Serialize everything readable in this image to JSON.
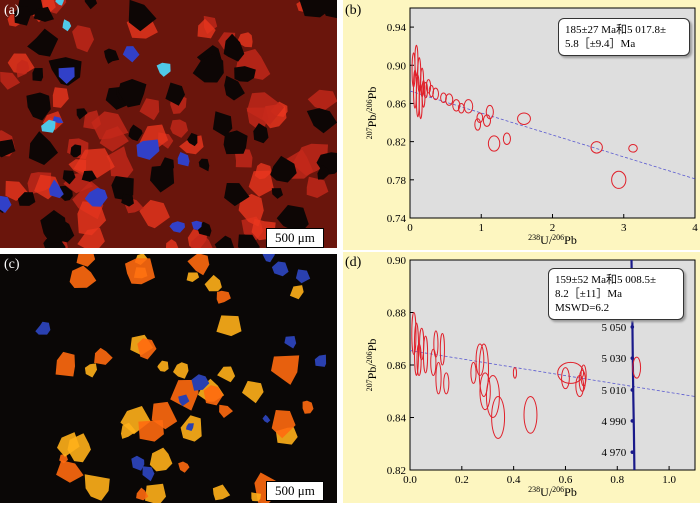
{
  "figure": {
    "panels": {
      "a": {
        "letter": "(a)",
        "scale_label": "500 μm"
      },
      "b": {
        "letter": "(b)"
      },
      "c": {
        "letter": "(c)",
        "scale_label": "500 μm"
      },
      "d": {
        "letter": "(d)"
      }
    }
  },
  "chart_data": [
    {
      "type": "scatter",
      "panel": "b",
      "title": "",
      "xlabel": "238U/206Pb",
      "ylabel": "207Pb/206Pb",
      "xlim": [
        0,
        4
      ],
      "ylim": [
        0.74,
        0.96
      ],
      "xticks": [
        "0",
        "1",
        "2",
        "3",
        "4"
      ],
      "yticks": [
        "0.74",
        "0.78",
        "0.82",
        "0.86",
        "0.90",
        "0.94"
      ],
      "annotation_lines": [
        "185±27 Ma和5 017.8±",
        "5.8［±9.4］Ma"
      ],
      "regression_line": {
        "x": [
          0,
          4
        ],
        "y": [
          0.873,
          0.781
        ]
      },
      "points": [
        {
          "x": 0.05,
          "y": 0.895,
          "rx": 0.02,
          "ry": 0.018
        },
        {
          "x": 0.07,
          "y": 0.875,
          "rx": 0.02,
          "ry": 0.02
        },
        {
          "x": 0.09,
          "y": 0.905,
          "rx": 0.02,
          "ry": 0.016
        },
        {
          "x": 0.11,
          "y": 0.868,
          "rx": 0.02,
          "ry": 0.022
        },
        {
          "x": 0.13,
          "y": 0.89,
          "rx": 0.02,
          "ry": 0.018
        },
        {
          "x": 0.15,
          "y": 0.862,
          "rx": 0.02,
          "ry": 0.018
        },
        {
          "x": 0.17,
          "y": 0.882,
          "rx": 0.02,
          "ry": 0.015
        },
        {
          "x": 0.19,
          "y": 0.87,
          "rx": 0.02,
          "ry": 0.014
        },
        {
          "x": 0.22,
          "y": 0.874,
          "rx": 0.025,
          "ry": 0.008
        },
        {
          "x": 0.26,
          "y": 0.878,
          "rx": 0.03,
          "ry": 0.007
        },
        {
          "x": 0.3,
          "y": 0.873,
          "rx": 0.03,
          "ry": 0.006
        },
        {
          "x": 0.36,
          "y": 0.87,
          "rx": 0.04,
          "ry": 0.006
        },
        {
          "x": 0.47,
          "y": 0.866,
          "rx": 0.04,
          "ry": 0.005
        },
        {
          "x": 0.55,
          "y": 0.864,
          "rx": 0.05,
          "ry": 0.006
        },
        {
          "x": 0.65,
          "y": 0.858,
          "rx": 0.05,
          "ry": 0.006
        },
        {
          "x": 0.72,
          "y": 0.855,
          "rx": 0.04,
          "ry": 0.005
        },
        {
          "x": 0.82,
          "y": 0.857,
          "rx": 0.06,
          "ry": 0.007
        },
        {
          "x": 0.95,
          "y": 0.838,
          "rx": 0.04,
          "ry": 0.006
        },
        {
          "x": 0.98,
          "y": 0.845,
          "rx": 0.04,
          "ry": 0.005
        },
        {
          "x": 1.08,
          "y": 0.842,
          "rx": 0.05,
          "ry": 0.006
        },
        {
          "x": 1.12,
          "y": 0.851,
          "rx": 0.05,
          "ry": 0.007
        },
        {
          "x": 1.18,
          "y": 0.818,
          "rx": 0.08,
          "ry": 0.008
        },
        {
          "x": 1.36,
          "y": 0.823,
          "rx": 0.05,
          "ry": 0.006
        },
        {
          "x": 1.6,
          "y": 0.844,
          "rx": 0.09,
          "ry": 0.006
        },
        {
          "x": 2.62,
          "y": 0.814,
          "rx": 0.08,
          "ry": 0.006
        },
        {
          "x": 2.93,
          "y": 0.78,
          "rx": 0.1,
          "ry": 0.009
        },
        {
          "x": 3.13,
          "y": 0.813,
          "rx": 0.06,
          "ry": 0.004
        }
      ]
    },
    {
      "type": "scatter",
      "panel": "d",
      "title": "",
      "xlabel": "238U/206Pb",
      "ylabel": "207Pb/206Pb",
      "xlim": [
        0,
        1.1
      ],
      "ylim": [
        0.82,
        0.9
      ],
      "xticks": [
        "0.0",
        "0.2",
        "0.4",
        "0.6",
        "0.8",
        "1.0"
      ],
      "yticks": [
        "0.82",
        "0.84",
        "0.86",
        "0.88",
        "0.90"
      ],
      "annotation_lines": [
        "159±52 Ma和5 008.5±",
        "8.2［±11］Ma",
        "MSWD=6.2"
      ],
      "regression_line": {
        "x": [
          0,
          1.1
        ],
        "y": [
          0.8655,
          0.848
        ]
      },
      "concordia": {
        "x": [
          0.855,
          0.858,
          0.86,
          0.862,
          0.864,
          0.866
        ],
        "y": [
          0.9,
          0.88,
          0.862,
          0.848,
          0.835,
          0.82
        ],
        "age_labels": [
          "5 050",
          "5 030",
          "5 010",
          "4 990",
          "4 970"
        ],
        "age_label_y": [
          0.8745,
          0.8626,
          0.8505,
          0.8387,
          0.8268
        ]
      },
      "points": [
        {
          "x": 0.015,
          "y": 0.872,
          "rx": 0.008,
          "ry": 0.008
        },
        {
          "x": 0.025,
          "y": 0.866,
          "rx": 0.008,
          "ry": 0.01
        },
        {
          "x": 0.035,
          "y": 0.862,
          "rx": 0.008,
          "ry": 0.006
        },
        {
          "x": 0.045,
          "y": 0.868,
          "rx": 0.008,
          "ry": 0.006
        },
        {
          "x": 0.06,
          "y": 0.864,
          "rx": 0.008,
          "ry": 0.007
        },
        {
          "x": 0.09,
          "y": 0.861,
          "rx": 0.01,
          "ry": 0.005
        },
        {
          "x": 0.1,
          "y": 0.868,
          "rx": 0.008,
          "ry": 0.005
        },
        {
          "x": 0.11,
          "y": 0.855,
          "rx": 0.01,
          "ry": 0.006
        },
        {
          "x": 0.125,
          "y": 0.866,
          "rx": 0.008,
          "ry": 0.006
        },
        {
          "x": 0.14,
          "y": 0.853,
          "rx": 0.01,
          "ry": 0.004
        },
        {
          "x": 0.245,
          "y": 0.857,
          "rx": 0.01,
          "ry": 0.004
        },
        {
          "x": 0.27,
          "y": 0.862,
          "rx": 0.015,
          "ry": 0.006
        },
        {
          "x": 0.285,
          "y": 0.858,
          "rx": 0.018,
          "ry": 0.01
        },
        {
          "x": 0.29,
          "y": 0.85,
          "rx": 0.02,
          "ry": 0.007
        },
        {
          "x": 0.32,
          "y": 0.848,
          "rx": 0.025,
          "ry": 0.008
        },
        {
          "x": 0.34,
          "y": 0.84,
          "rx": 0.025,
          "ry": 0.008
        },
        {
          "x": 0.405,
          "y": 0.857,
          "rx": 0.006,
          "ry": 0.002
        },
        {
          "x": 0.465,
          "y": 0.841,
          "rx": 0.025,
          "ry": 0.007
        },
        {
          "x": 0.6,
          "y": 0.855,
          "rx": 0.015,
          "ry": 0.004
        },
        {
          "x": 0.62,
          "y": 0.857,
          "rx": 0.05,
          "ry": 0.004
        },
        {
          "x": 0.655,
          "y": 0.852,
          "rx": 0.015,
          "ry": 0.004
        },
        {
          "x": 0.665,
          "y": 0.854,
          "rx": 0.012,
          "ry": 0.004
        },
        {
          "x": 0.67,
          "y": 0.856,
          "rx": 0.01,
          "ry": 0.004
        },
        {
          "x": 0.875,
          "y": 0.859,
          "rx": 0.015,
          "ry": 0.004
        }
      ]
    }
  ]
}
